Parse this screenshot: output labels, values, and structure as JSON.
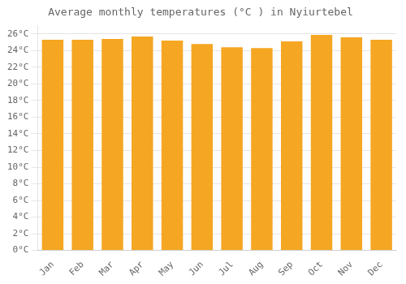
{
  "chart_data": {
    "type": "bar",
    "title": "Average monthly temperatures (°C ) in Nyiurtebel",
    "categories": [
      "Jan",
      "Feb",
      "Mar",
      "Apr",
      "May",
      "Jun",
      "Jul",
      "Aug",
      "Sep",
      "Oct",
      "Nov",
      "Dec"
    ],
    "values": [
      25.3,
      25.3,
      25.4,
      25.7,
      25.2,
      24.8,
      24.4,
      24.3,
      25.1,
      25.9,
      25.6,
      25.3
    ],
    "color": "#F5A623",
    "ylim": [
      0,
      27
    ],
    "yticks": [
      {
        "value": 0,
        "label": "0°C"
      },
      {
        "value": 2,
        "label": "2°C"
      },
      {
        "value": 4,
        "label": "4°C"
      },
      {
        "value": 6,
        "label": "6°C"
      },
      {
        "value": 8,
        "label": "8°C"
      },
      {
        "value": 10,
        "label": "10°C"
      },
      {
        "value": 12,
        "label": "12°C"
      },
      {
        "value": 14,
        "label": "14°C"
      },
      {
        "value": 16,
        "label": "16°C"
      },
      {
        "value": 18,
        "label": "18°C"
      },
      {
        "value": 20,
        "label": "20°C"
      },
      {
        "value": 22,
        "label": "22°C"
      },
      {
        "value": 24,
        "label": "24°C"
      },
      {
        "value": 26,
        "label": "26°C"
      }
    ],
    "grid": true
  }
}
